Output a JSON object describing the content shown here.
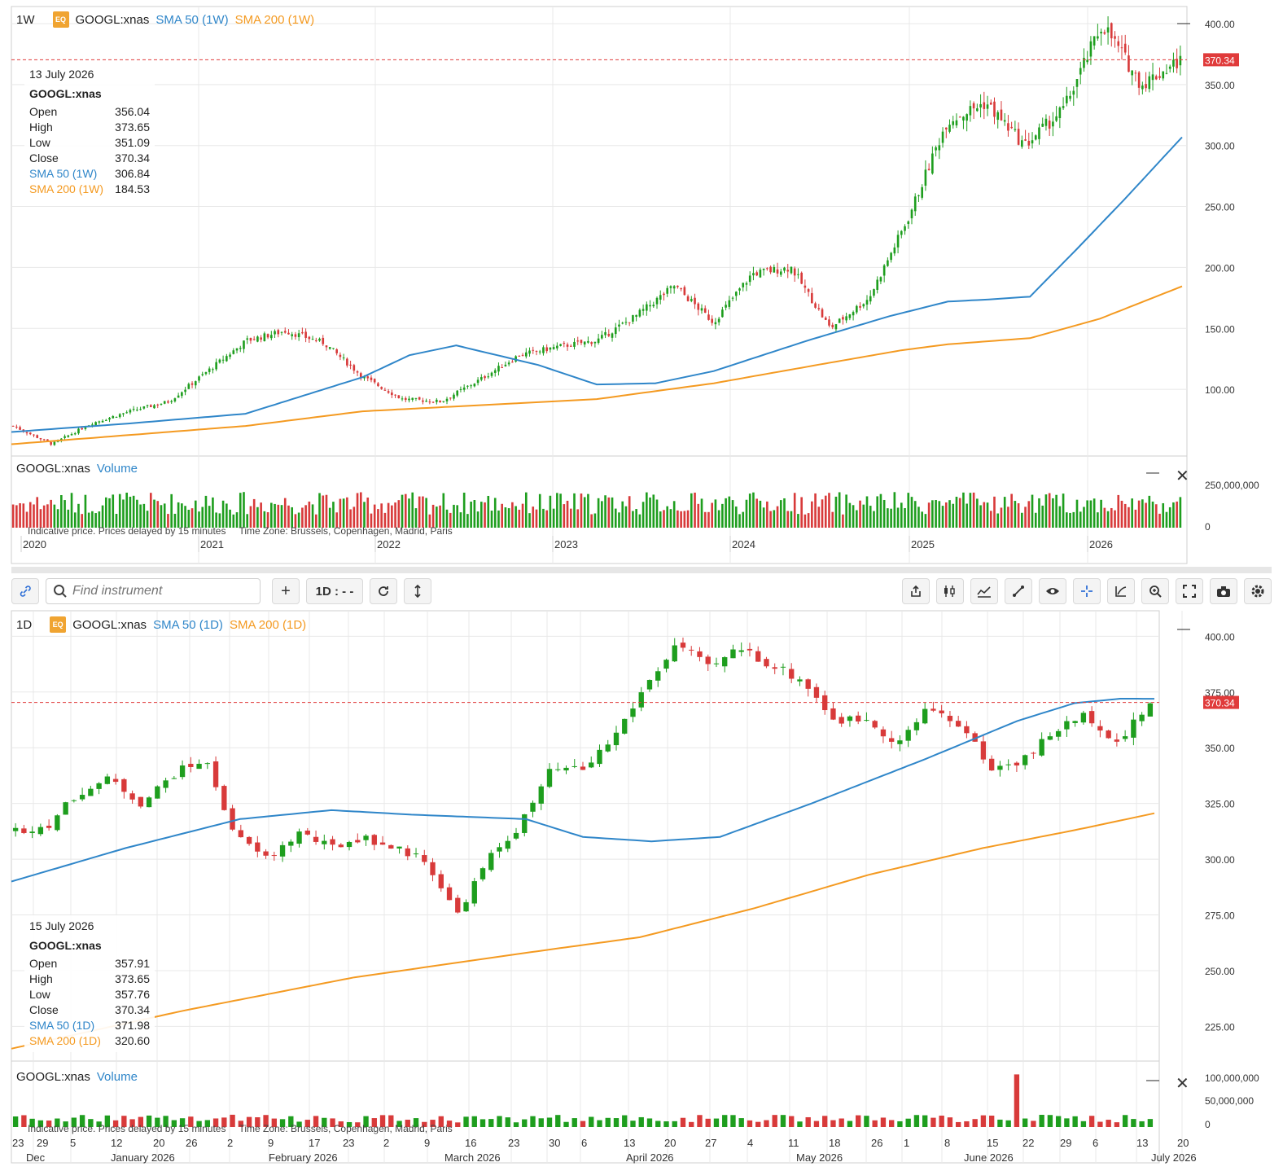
{
  "weekly": {
    "timeframe": "1W",
    "badge": "EQ",
    "ticker": "GOOGL:xnas",
    "sma50_label": "SMA 50 (1W)",
    "sma200_label": "SMA 200 (1W)",
    "info": {
      "date": "13 July 2026",
      "name": "GOOGL:xnas",
      "rows": [
        {
          "label": "Open",
          "value": "356.04"
        },
        {
          "label": "High",
          "value": "373.65"
        },
        {
          "label": "Low",
          "value": "351.09"
        },
        {
          "label": "Close",
          "value": "370.34"
        },
        {
          "label": "SMA 50 (1W)",
          "value": "306.84"
        },
        {
          "label": "SMA 200 (1W)",
          "value": "184.53"
        }
      ]
    },
    "price_ticks": [
      "400.00",
      "350.00",
      "300.00",
      "250.00",
      "200.00",
      "150.00",
      "100.00"
    ],
    "last_price": "370.34",
    "x_labels": [
      "2020",
      "2021",
      "2022",
      "2023",
      "2024",
      "2025",
      "2026"
    ],
    "volume_label": "Volume",
    "volume_ticks": [
      "250,000,000",
      "0"
    ]
  },
  "daily": {
    "timeframe": "1D",
    "badge": "EQ",
    "ticker": "GOOGL:xnas",
    "sma50_label": "SMA 50 (1D)",
    "sma200_label": "SMA 200 (1D)",
    "info": {
      "date": "15 July 2026",
      "name": "GOOGL:xnas",
      "rows": [
        {
          "label": "Open",
          "value": "357.91"
        },
        {
          "label": "High",
          "value": "373.65"
        },
        {
          "label": "Low",
          "value": "357.76"
        },
        {
          "label": "Close",
          "value": "370.34"
        },
        {
          "label": "SMA 50 (1D)",
          "value": "371.98"
        },
        {
          "label": "SMA 200 (1D)",
          "value": "320.60"
        }
      ]
    },
    "price_ticks": [
      "400.00",
      "375.00",
      "350.00",
      "325.00",
      "300.00",
      "275.00",
      "250.00",
      "225.00"
    ],
    "last_price": "370.34",
    "day_labels": [
      "23",
      "29",
      "5",
      "12",
      "20",
      "26",
      "2",
      "9",
      "17",
      "23",
      "2",
      "9",
      "16",
      "23",
      "30",
      "6",
      "13",
      "20",
      "27",
      "4",
      "11",
      "18",
      "26",
      "1",
      "8",
      "15",
      "22",
      "29",
      "6",
      "13",
      "20"
    ],
    "month_labels": [
      "Dec",
      "January 2026",
      "February 2026",
      "March 2026",
      "April 2026",
      "May 2026",
      "June 2026",
      "July 2026"
    ],
    "volume_label": "Volume",
    "volume_ticks": [
      "100,000,000",
      "50,000,000",
      "0"
    ]
  },
  "disclaimer": {
    "delay": "Indicative price. Prices delayed by 15 minutes",
    "timezone": "Time Zone: Brussels, Copenhagen, Madrid, Paris"
  },
  "toolbar": {
    "search_placeholder": "Find instrument",
    "add_label": "+",
    "interval_label": "1D : - -",
    "icons": [
      "link-icon",
      "share-icon",
      "candles-icon",
      "indicators-icon",
      "draw-line-icon",
      "eye-icon",
      "crosshair-icon",
      "curve-icon",
      "zoom-icon",
      "fullscreen-icon",
      "camera-icon",
      "settings-icon"
    ]
  },
  "colors": {
    "up": "#1e9e1e",
    "down": "#d83a3a",
    "sma50": "#2f86c9",
    "sma200": "#f49a21",
    "last_price": "#e03b3b"
  },
  "chart_data": [
    {
      "type": "candlestick",
      "title": "GOOGL:xnas 1W",
      "x_start": "2020",
      "x_end": "2026-07",
      "ylim": [
        50,
        410
      ],
      "anchors": [
        {
          "t": "2020-01",
          "close": 70
        },
        {
          "t": "2020-03",
          "close": 55
        },
        {
          "t": "2020-06",
          "close": 72
        },
        {
          "t": "2020-10",
          "close": 82
        },
        {
          "t": "2021-01",
          "close": 90
        },
        {
          "t": "2021-04",
          "close": 115
        },
        {
          "t": "2021-08",
          "close": 140
        },
        {
          "t": "2021-11",
          "close": 148
        },
        {
          "t": "2022-03",
          "close": 138
        },
        {
          "t": "2022-07",
          "close": 110
        },
        {
          "t": "2022-11",
          "close": 92
        },
        {
          "t": "2023-01",
          "close": 90
        },
        {
          "t": "2023-04",
          "close": 108
        },
        {
          "t": "2023-07",
          "close": 128
        },
        {
          "t": "2023-10",
          "close": 135
        },
        {
          "t": "2024-02",
          "close": 140
        },
        {
          "t": "2024-04",
          "close": 160
        },
        {
          "t": "2024-07",
          "close": 185
        },
        {
          "t": "2024-09",
          "close": 155
        },
        {
          "t": "2024-12",
          "close": 195
        },
        {
          "t": "2025-02",
          "close": 200
        },
        {
          "t": "2025-04",
          "close": 150
        },
        {
          "t": "2025-06",
          "close": 175
        },
        {
          "t": "2025-09",
          "close": 240
        },
        {
          "t": "2025-11",
          "close": 320
        },
        {
          "t": "2026-01",
          "close": 335
        },
        {
          "t": "2026-02",
          "close": 300
        },
        {
          "t": "2026-03",
          "close": 330
        },
        {
          "t": "2026-05",
          "close": 400
        },
        {
          "t": "2026-06",
          "close": 350
        },
        {
          "t": "2026-07",
          "close": 370
        }
      ],
      "sma50": [
        [
          0,
          65
        ],
        [
          0.1,
          72
        ],
        [
          0.2,
          80
        ],
        [
          0.3,
          110
        ],
        [
          0.34,
          128
        ],
        [
          0.38,
          136
        ],
        [
          0.45,
          120
        ],
        [
          0.5,
          104
        ],
        [
          0.55,
          105
        ],
        [
          0.6,
          115
        ],
        [
          0.68,
          140
        ],
        [
          0.75,
          160
        ],
        [
          0.8,
          172
        ],
        [
          0.84,
          174
        ],
        [
          0.87,
          176
        ],
        [
          0.91,
          215
        ],
        [
          0.95,
          255
        ],
        [
          1.0,
          306.84
        ]
      ],
      "sma200": [
        [
          0,
          55
        ],
        [
          0.2,
          70
        ],
        [
          0.3,
          82
        ],
        [
          0.5,
          92
        ],
        [
          0.6,
          105
        ],
        [
          0.7,
          122
        ],
        [
          0.76,
          132
        ],
        [
          0.8,
          137
        ],
        [
          0.87,
          142
        ],
        [
          0.93,
          158
        ],
        [
          1.0,
          184.53
        ]
      ],
      "last": 370.34
    },
    {
      "type": "candlestick",
      "title": "GOOGL:xnas 1D",
      "x_start": "2025-12-23",
      "x_end": "2026-07-15",
      "ylim": [
        212,
        410
      ],
      "anchors": [
        {
          "t": "2025-12-23",
          "close": 313
        },
        {
          "t": "2026-01-02",
          "close": 315
        },
        {
          "t": "2026-01-09",
          "close": 330
        },
        {
          "t": "2026-01-14",
          "close": 336
        },
        {
          "t": "2026-01-22",
          "close": 325
        },
        {
          "t": "2026-01-28",
          "close": 338
        },
        {
          "t": "2026-02-03",
          "close": 345
        },
        {
          "t": "2026-02-06",
          "close": 310
        },
        {
          "t": "2026-02-13",
          "close": 300
        },
        {
          "t": "2026-02-20",
          "close": 312
        },
        {
          "t": "2026-03-02",
          "close": 305
        },
        {
          "t": "2026-03-09",
          "close": 310
        },
        {
          "t": "2026-03-16",
          "close": 305
        },
        {
          "t": "2026-03-20",
          "close": 300
        },
        {
          "t": "2026-03-27",
          "close": 275
        },
        {
          "t": "2026-04-02",
          "close": 300
        },
        {
          "t": "2026-04-09",
          "close": 315
        },
        {
          "t": "2026-04-15",
          "close": 340
        },
        {
          "t": "2026-04-22",
          "close": 340
        },
        {
          "t": "2026-04-28",
          "close": 355
        },
        {
          "t": "2026-05-01",
          "close": 378
        },
        {
          "t": "2026-05-08",
          "close": 397
        },
        {
          "t": "2026-05-13",
          "close": 385
        },
        {
          "t": "2026-05-18",
          "close": 395
        },
        {
          "t": "2026-05-22",
          "close": 387
        },
        {
          "t": "2026-05-29",
          "close": 380
        },
        {
          "t": "2026-06-03",
          "close": 362
        },
        {
          "t": "2026-06-09",
          "close": 363
        },
        {
          "t": "2026-06-12",
          "close": 352
        },
        {
          "t": "2026-06-17",
          "close": 368
        },
        {
          "t": "2026-06-22",
          "close": 360
        },
        {
          "t": "2026-06-25",
          "close": 340
        },
        {
          "t": "2026-06-29",
          "close": 345
        },
        {
          "t": "2026-07-03",
          "close": 358
        },
        {
          "t": "2026-07-07",
          "close": 365
        },
        {
          "t": "2026-07-10",
          "close": 352
        },
        {
          "t": "2026-07-15",
          "close": 370.34
        }
      ],
      "sma50": [
        [
          0,
          290
        ],
        [
          0.1,
          305
        ],
        [
          0.2,
          318
        ],
        [
          0.28,
          322
        ],
        [
          0.35,
          320
        ],
        [
          0.45,
          318
        ],
        [
          0.5,
          310
        ],
        [
          0.56,
          308
        ],
        [
          0.62,
          310
        ],
        [
          0.7,
          325
        ],
        [
          0.8,
          345
        ],
        [
          0.88,
          362
        ],
        [
          0.93,
          370
        ],
        [
          0.97,
          372
        ],
        [
          1.0,
          371.98
        ]
      ],
      "sma200": [
        [
          0,
          215
        ],
        [
          0.15,
          232
        ],
        [
          0.3,
          247
        ],
        [
          0.45,
          258
        ],
        [
          0.55,
          265
        ],
        [
          0.65,
          278
        ],
        [
          0.75,
          293
        ],
        [
          0.85,
          305
        ],
        [
          0.93,
          313
        ],
        [
          1.0,
          320.6
        ]
      ],
      "last": 370.34
    }
  ]
}
